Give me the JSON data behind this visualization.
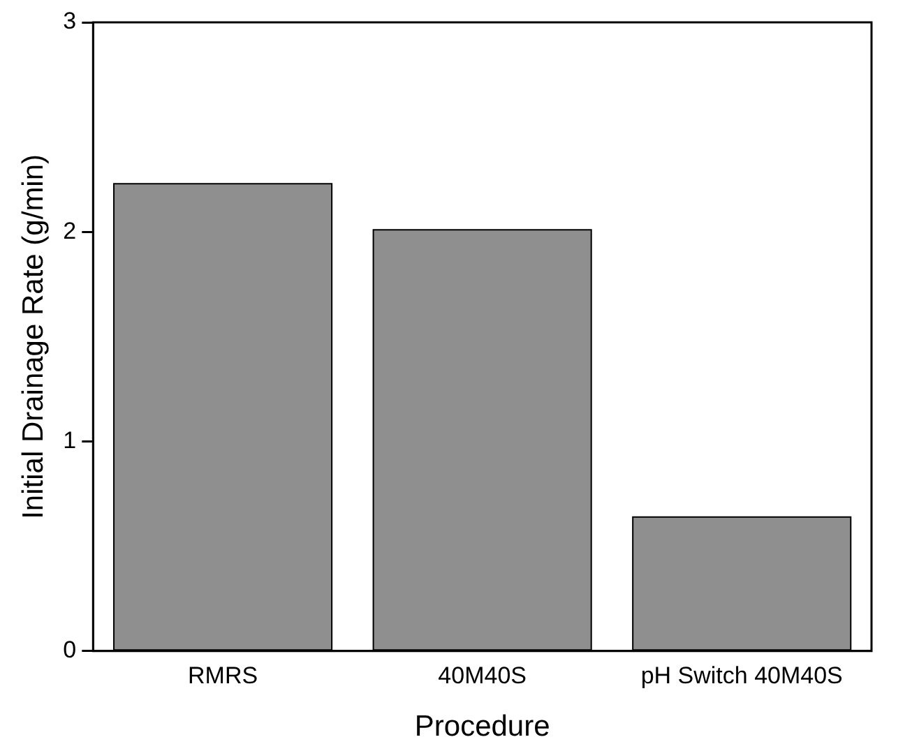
{
  "chart_data": {
    "type": "bar",
    "xlabel": "Procedure",
    "ylabel": "Initial Drainage Rate (g/min)",
    "categories": [
      "RMRS",
      "40M40S",
      "pH Switch 40M40S"
    ],
    "values": [
      2.23,
      2.01,
      0.64
    ],
    "color": "#8f8f8f",
    "ylim": [
      0,
      3
    ],
    "yticks": [
      0,
      1,
      2,
      3
    ],
    "grid": false
  }
}
